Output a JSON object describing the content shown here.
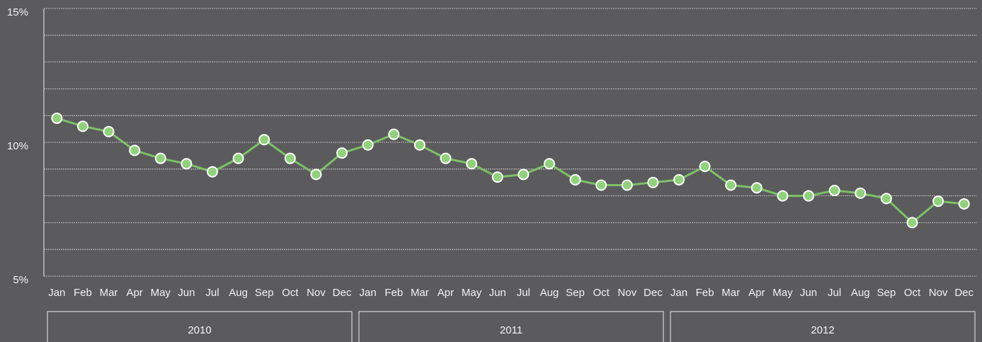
{
  "chart_data": {
    "type": "line",
    "categories": [
      "Jan",
      "Feb",
      "Mar",
      "Apr",
      "May",
      "Jun",
      "Jul",
      "Aug",
      "Sep",
      "Oct",
      "Nov",
      "Dec",
      "Jan",
      "Feb",
      "Mar",
      "Apr",
      "May",
      "Jun",
      "Jul",
      "Aug",
      "Sep",
      "Oct",
      "Nov",
      "Dec",
      "Jan",
      "Feb",
      "Mar",
      "Apr",
      "May",
      "Jun",
      "Jul",
      "Aug",
      "Sep",
      "Oct",
      "Nov",
      "Dec"
    ],
    "category_groups": [
      "2010",
      "2011",
      "2012"
    ],
    "values": [
      10.9,
      10.6,
      10.4,
      9.7,
      9.4,
      9.2,
      8.9,
      9.4,
      10.1,
      9.4,
      8.8,
      9.6,
      9.9,
      10.3,
      9.9,
      9.4,
      9.2,
      8.7,
      8.8,
      9.2,
      8.6,
      8.4,
      8.4,
      8.5,
      8.6,
      9.1,
      8.4,
      8.3,
      8.0,
      8.0,
      8.2,
      8.1,
      7.9,
      7.0,
      7.8,
      7.7
    ],
    "color": "#7cc166",
    "ylim": [
      5,
      15
    ],
    "yticks": [
      {
        "value": 5,
        "label": "5%"
      },
      {
        "value": 10,
        "label": "10%"
      },
      {
        "value": 15,
        "label": "15%"
      }
    ],
    "minor_yticks": [
      6,
      7,
      8,
      9,
      11,
      12,
      13,
      14
    ],
    "grid": true
  }
}
